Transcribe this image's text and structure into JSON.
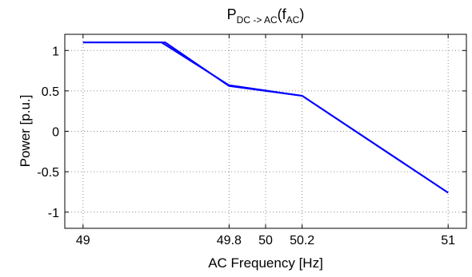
{
  "chart_data": {
    "type": "line",
    "title": {
      "main": "P",
      "sub1": "DC -> AC",
      "open": "(f",
      "sub2": "AC",
      "close": ")"
    },
    "xlabel": "AC Frequency [Hz]",
    "ylabel": "Power [p.u.]",
    "xlim": [
      48.9,
      51.1
    ],
    "ylim": [
      -1.2,
      1.2
    ],
    "xticks": [
      49,
      49.8,
      50,
      50.2,
      51
    ],
    "xtick_labels": [
      "49",
      "49.8",
      "50",
      "50.2",
      "51"
    ],
    "yticks": [
      -1,
      -0.5,
      0,
      0.5,
      1
    ],
    "ytick_labels": [
      "-1",
      "-0.5",
      "0",
      "0.5",
      "1"
    ],
    "grid": true,
    "series": [
      {
        "color": "#0000ff",
        "x": [
          49,
          49.45,
          49.8,
          50.2,
          51
        ],
        "y": [
          1.1,
          1.1,
          0.56,
          0.44,
          -0.76
        ]
      },
      {
        "color": "#0000ff",
        "x": [
          49,
          49.43,
          49.8,
          50.2,
          51
        ],
        "y": [
          1.1,
          1.1,
          0.57,
          0.44,
          -0.76
        ]
      }
    ]
  }
}
